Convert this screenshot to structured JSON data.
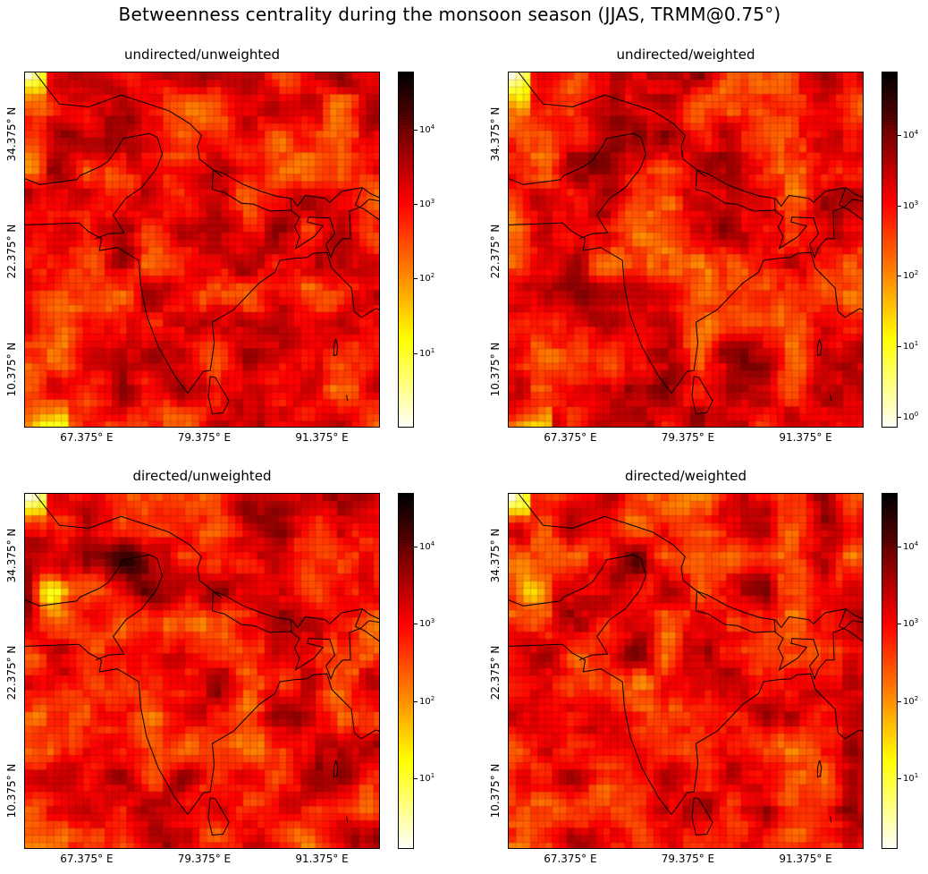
{
  "chart_data": {
    "type": "heatmap",
    "title": "Betweenness centrality during the monsoon season (JJAS, TRMM@0.75°)",
    "colormap": "hot_r",
    "color_scale": "log",
    "panels": [
      {
        "title": "undirected/unweighted",
        "xticks": [
          "67.375° E",
          "79.375° E",
          "91.375° E"
        ],
        "yticks": [
          "34.375° N",
          "22.375° N",
          "10.375° N"
        ],
        "colorbar": {
          "range": [
            1,
            60000
          ],
          "ticks": [
            {
              "base": "10",
              "exp": "1"
            },
            {
              "base": "10",
              "exp": "2"
            },
            {
              "base": "10",
              "exp": "3"
            },
            {
              "base": "10",
              "exp": "4"
            }
          ]
        }
      },
      {
        "title": "undirected/weighted",
        "xticks": [
          "67.375° E",
          "79.375° E",
          "91.375° E"
        ],
        "yticks": [
          "34.375° N",
          "22.375° N",
          "10.375° N"
        ],
        "colorbar": {
          "range": [
            0.7,
            80000
          ],
          "ticks": [
            {
              "base": "10",
              "exp": "0"
            },
            {
              "base": "10",
              "exp": "1"
            },
            {
              "base": "10",
              "exp": "2"
            },
            {
              "base": "10",
              "exp": "3"
            },
            {
              "base": "10",
              "exp": "4"
            }
          ]
        }
      },
      {
        "title": "directed/unweighted",
        "xticks": [
          "67.375° E",
          "79.375° E",
          "91.375° E"
        ],
        "yticks": [
          "34.375° N",
          "22.375° N",
          "10.375° N"
        ],
        "colorbar": {
          "range": [
            1.2,
            50000
          ],
          "ticks": [
            {
              "base": "10",
              "exp": "1"
            },
            {
              "base": "10",
              "exp": "2"
            },
            {
              "base": "10",
              "exp": "3"
            },
            {
              "base": "10",
              "exp": "4"
            }
          ]
        }
      },
      {
        "title": "directed/weighted",
        "xticks": [
          "67.375° E",
          "79.375° E",
          "91.375° E"
        ],
        "yticks": [
          "34.375° N",
          "22.375° N",
          "10.375° N"
        ],
        "colorbar": {
          "range": [
            1.2,
            50000
          ],
          "ticks": [
            {
              "base": "10",
              "exp": "1"
            },
            {
              "base": "10",
              "exp": "2"
            },
            {
              "base": "10",
              "exp": "3"
            },
            {
              "base": "10",
              "exp": "4"
            }
          ]
        }
      }
    ]
  }
}
